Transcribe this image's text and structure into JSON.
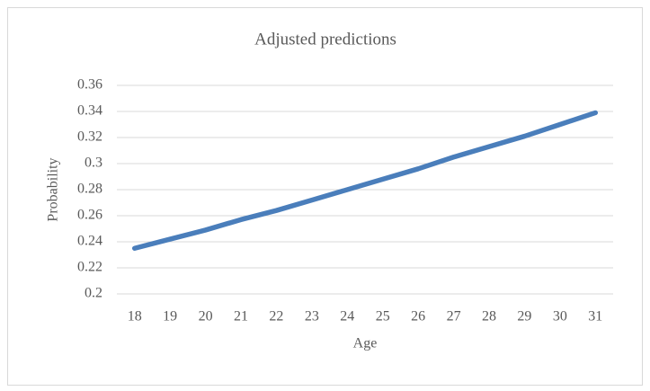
{
  "chart_data": {
    "type": "line",
    "title": "Adjusted predictions",
    "x_label": "Age",
    "y_label": "Probability",
    "categories": [
      18,
      19,
      20,
      21,
      22,
      23,
      24,
      25,
      26,
      27,
      28,
      29,
      30,
      31
    ],
    "series": [
      {
        "name": "Probability",
        "color": "#4a7ebb",
        "values": [
          0.235,
          0.242,
          0.249,
          0.257,
          0.264,
          0.272,
          0.28,
          0.288,
          0.296,
          0.305,
          0.313,
          0.321,
          0.33,
          0.339
        ]
      }
    ],
    "ylim": [
      0.2,
      0.36
    ],
    "yticks": [
      0.2,
      0.22,
      0.24,
      0.26,
      0.28,
      0.3,
      0.32,
      0.34,
      0.36
    ],
    "grid": true
  }
}
